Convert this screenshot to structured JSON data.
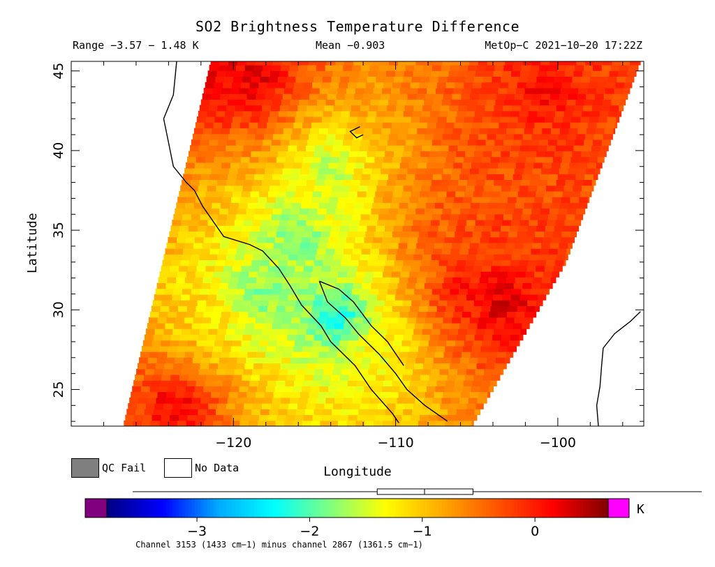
{
  "header": {
    "title": "SO2 Brightness Temperature Difference",
    "range": "Range −3.57 − 1.48 K",
    "mean": "Mean −0.903",
    "satellite_time": "MetOp−C 2021−10−20 17:22Z"
  },
  "legend": {
    "qc_fail_label": "QC Fail",
    "no_data_label": "No Data",
    "qc_fail_color": "#7f7f7f",
    "no_data_color": "#ffffff"
  },
  "footer": "Channel 3153 (1433 cm−1) minus channel 2867 (1361.5 cm−1)",
  "chart_data": {
    "type": "heatmap",
    "title": "SO2 Brightness Temperature Difference",
    "xlabel": "Longitude",
    "ylabel": "Latitude",
    "xlim": [
      -130,
      -94.7
    ],
    "ylim": [
      22.7,
      45.6
    ],
    "x_ticks": [
      -120,
      -110,
      -100
    ],
    "x_tick_labels": [
      "−120",
      "−110",
      "−100"
    ],
    "y_ticks": [
      25,
      30,
      35,
      40,
      45
    ],
    "y_tick_labels": [
      "25",
      "30",
      "35",
      "40",
      "45"
    ],
    "value_range": [
      -3.57,
      1.48
    ],
    "mean": -0.903,
    "units": "K",
    "colorbar": {
      "vmin": -3.8,
      "vmax": 0.65,
      "ticks": [
        -3,
        -2,
        -1,
        0
      ],
      "tick_labels": [
        "−3",
        "−2",
        "−1",
        "0"
      ],
      "unit": "K",
      "under_color": "#800080",
      "over_color": "#ff00ff",
      "box_plot": {
        "min": -3.57,
        "q1": -1.4,
        "median": -0.98,
        "q3": -0.55,
        "max": 1.48
      }
    },
    "colormap": [
      "#000080",
      "#0000ff",
      "#00aaff",
      "#00ffff",
      "#7fff7f",
      "#ffff00",
      "#ffaa00",
      "#ff5500",
      "#ff0000",
      "#800000"
    ],
    "swath": {
      "left_edge": [
        [
          -126.8,
          22.7
        ],
        [
          -121.4,
          45.6
        ]
      ],
      "right_edge": [
        [
          -105.3,
          22.7
        ],
        [
          -99.5,
          33.0
        ],
        [
          -94.9,
          45.6
        ]
      ]
    },
    "features": [
      {
        "lon": -113.5,
        "lat": 29.5,
        "value": -2.4
      },
      {
        "lon": -116.0,
        "lat": 34.5,
        "value": -1.9
      },
      {
        "lon": -118.5,
        "lat": 31.0,
        "value": -1.9
      },
      {
        "lon": -114.0,
        "lat": 39.0,
        "value": -1.6
      },
      {
        "lon": -111.5,
        "lat": 27.5,
        "value": -1.3
      },
      {
        "lon": -103.5,
        "lat": 30.5,
        "value": 0.4
      },
      {
        "lon": -105.5,
        "lat": 31.5,
        "value": 0.1
      },
      {
        "lon": -107.0,
        "lat": 35.5,
        "value": -0.35
      },
      {
        "lon": -103.0,
        "lat": 34.5,
        "value": -0.2
      },
      {
        "lon": -121.5,
        "lat": 44.0,
        "value": 0.2
      },
      {
        "lon": -119.0,
        "lat": 44.5,
        "value": 0.3
      },
      {
        "lon": -101.0,
        "lat": 43.5,
        "value": 0.1
      },
      {
        "lon": -103.0,
        "lat": 40.0,
        "value": -0.25
      },
      {
        "lon": -123.5,
        "lat": 24.0,
        "value": 0.2
      },
      {
        "lon": -125.0,
        "lat": 37.0,
        "value": -0.7
      },
      {
        "lon": -121.5,
        "lat": 30.0,
        "value": -1.1
      }
    ],
    "coastlines": [
      [
        [
          -123.5,
          45.6
        ],
        [
          -123.7,
          43.5
        ],
        [
          -124.3,
          42.0
        ],
        [
          -124.0,
          40.5
        ],
        [
          -123.7,
          39.0
        ],
        [
          -122.9,
          38.0
        ],
        [
          -122.4,
          37.5
        ],
        [
          -121.9,
          36.5
        ],
        [
          -120.6,
          34.6
        ],
        [
          -119.0,
          34.1
        ],
        [
          -118.2,
          33.7
        ],
        [
          -117.2,
          32.6
        ],
        [
          -116.5,
          31.5
        ],
        [
          -115.8,
          30.3
        ],
        [
          -114.6,
          29.0
        ],
        [
          -114.0,
          28.0
        ],
        [
          -112.5,
          26.5
        ],
        [
          -111.5,
          25.0
        ],
        [
          -110.2,
          23.5
        ],
        [
          -109.8,
          22.9
        ]
      ],
      [
        [
          -114.7,
          31.8
        ],
        [
          -114.2,
          30.5
        ],
        [
          -113.1,
          29.5
        ],
        [
          -112.3,
          28.5
        ],
        [
          -111.0,
          27.2
        ],
        [
          -110.0,
          26.0
        ],
        [
          -109.3,
          25.0
        ],
        [
          -108.2,
          24.0
        ],
        [
          -106.8,
          23.0
        ]
      ],
      [
        [
          -114.7,
          31.8
        ],
        [
          -113.5,
          31.3
        ],
        [
          -112.6,
          30.5
        ],
        [
          -111.5,
          29.0
        ],
        [
          -110.5,
          28.0
        ],
        [
          -109.5,
          26.5
        ]
      ],
      [
        [
          -112.2,
          41.5
        ],
        [
          -112.8,
          41.2
        ],
        [
          -112.4,
          40.8
        ],
        [
          -112.0,
          41.0
        ]
      ],
      [
        [
          -94.9,
          29.9
        ],
        [
          -95.5,
          29.3
        ],
        [
          -96.5,
          28.5
        ],
        [
          -97.2,
          27.6
        ],
        [
          -97.3,
          26.5
        ],
        [
          -97.4,
          25.2
        ],
        [
          -97.6,
          24.0
        ],
        [
          -97.5,
          22.7
        ]
      ]
    ]
  }
}
